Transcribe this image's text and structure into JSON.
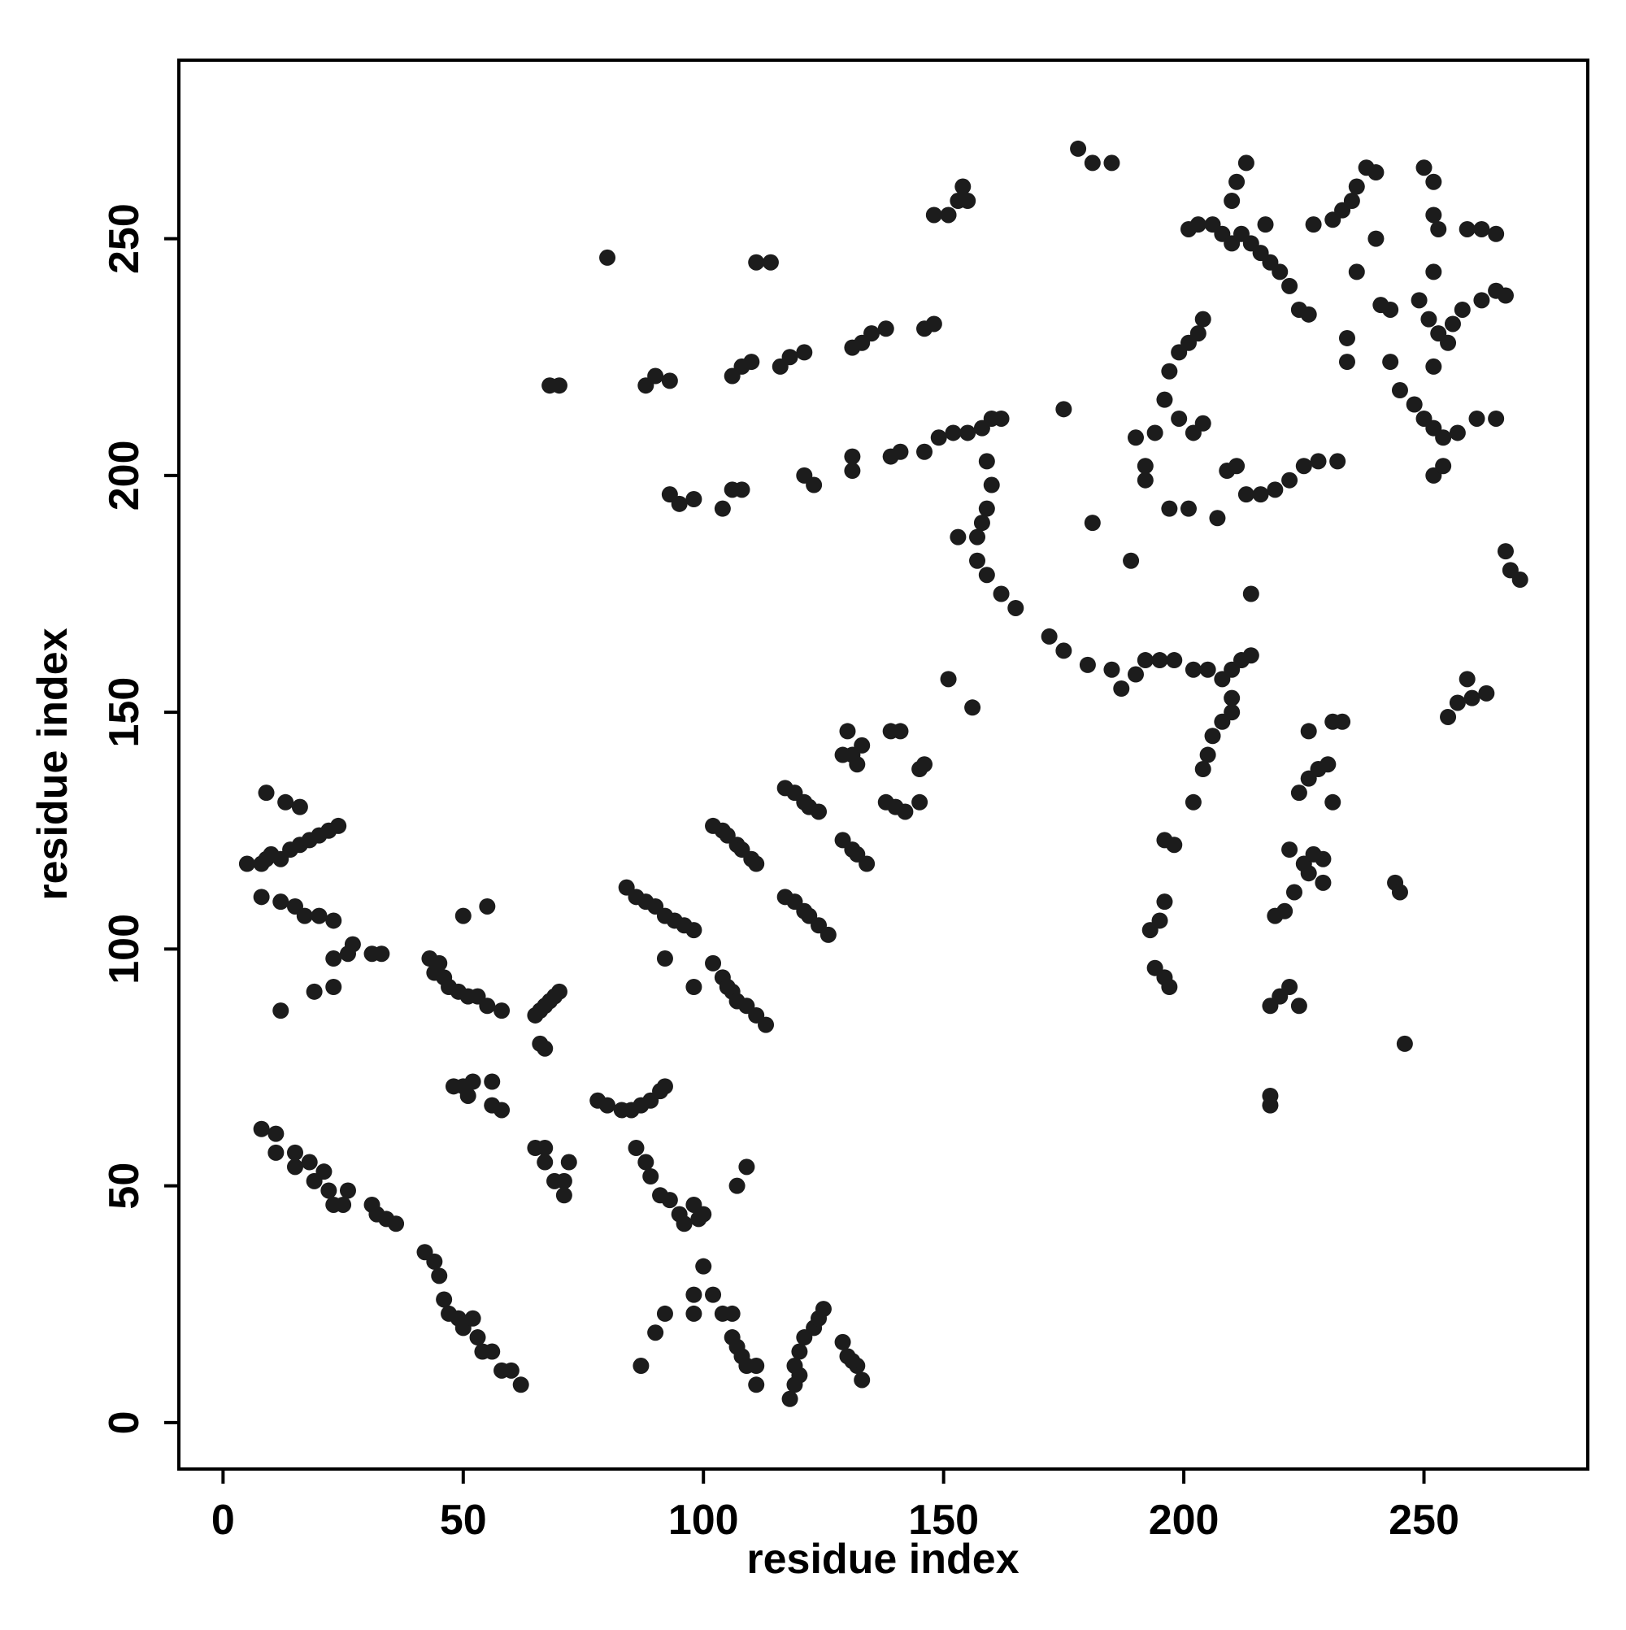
{
  "chart_data": {
    "type": "scatter",
    "xlabel": "residue index",
    "ylabel": "residue index",
    "xlim": [
      -9.2,
      284.1
    ],
    "ylim": [
      -9.8,
      287.7
    ],
    "xticks": [
      0,
      50,
      100,
      150,
      200,
      250
    ],
    "yticks": [
      0,
      50,
      100,
      150,
      200,
      250
    ],
    "series": [
      {
        "color": "#1c1c1c",
        "x": [
          8,
          11,
          11,
          15,
          15,
          18,
          19,
          21,
          22,
          23,
          25,
          26,
          31,
          32,
          34,
          36,
          42,
          44,
          45,
          46,
          47,
          49,
          50,
          52,
          53,
          54,
          56,
          58,
          60,
          62,
          5,
          8,
          10,
          12,
          14,
          16,
          18,
          20,
          22,
          24,
          9,
          13,
          16,
          9,
          8,
          12,
          15,
          17,
          20,
          23,
          23,
          26,
          27,
          31,
          33,
          19,
          23,
          12,
          43,
          45,
          46,
          47,
          49,
          51,
          53,
          55,
          58,
          44,
          50,
          55,
          65,
          66,
          67,
          68,
          69,
          70,
          66,
          67,
          48,
          50,
          51,
          52,
          56,
          56,
          58,
          65,
          67,
          67,
          69,
          71,
          71,
          72,
          84,
          86,
          88,
          90,
          92,
          94,
          96,
          98,
          92,
          98,
          102,
          104,
          105,
          106,
          107,
          109,
          111,
          113,
          102,
          104,
          105,
          107,
          108,
          110,
          111,
          117,
          119,
          121,
          122,
          124,
          126,
          117,
          119,
          121,
          122,
          124,
          129,
          131,
          132,
          134,
          129,
          131,
          132,
          130,
          133,
          138,
          140,
          142,
          145,
          145,
          146,
          139,
          141,
          151,
          156,
          78,
          80,
          83,
          85,
          87,
          89,
          91,
          92,
          86,
          88,
          89,
          91,
          93,
          95,
          96,
          98,
          99,
          100,
          87,
          90,
          92,
          98,
          98,
          100,
          102,
          104,
          106,
          106,
          107,
          108,
          109,
          111,
          111,
          118,
          119,
          119,
          120,
          121,
          123,
          124,
          125,
          120,
          129,
          130,
          132,
          133,
          131,
          107,
          109,
          93,
          95,
          98,
          104,
          106,
          108,
          121,
          123,
          131,
          131,
          139,
          141,
          68,
          70,
          88,
          90,
          93,
          106,
          108,
          110,
          116,
          118,
          121,
          131,
          133,
          135,
          138,
          146,
          148,
          80,
          111,
          114,
          148,
          151,
          153,
          155,
          154,
          178,
          181,
          185,
          146,
          149,
          152,
          155,
          158,
          160,
          162,
          159,
          160,
          159,
          158,
          157,
          153,
          157,
          159,
          162,
          165,
          172,
          175,
          180,
          185,
          187,
          190,
          192,
          195,
          198,
          202,
          205,
          208,
          210,
          212,
          214,
          210,
          210,
          208,
          206,
          205,
          204,
          202,
          196,
          198,
          196,
          195,
          193,
          194,
          196,
          197,
          175,
          181,
          189,
          190,
          192,
          192,
          194,
          196,
          197,
          199,
          201,
          203,
          204,
          199,
          202,
          204,
          201,
          197,
          201,
          203,
          206,
          208,
          210,
          212,
          214,
          216,
          218,
          220,
          222,
          224,
          226,
          227,
          231,
          233,
          235,
          236,
          238,
          240,
          240,
          236,
          234,
          234,
          241,
          243,
          243,
          245,
          248,
          250,
          252,
          254,
          257,
          261,
          265,
          249,
          251,
          253,
          255,
          252,
          252,
          254,
          252,
          250,
          252,
          252,
          253,
          259,
          262,
          265,
          256,
          258,
          262,
          265,
          267,
          209,
          211,
          213,
          216,
          219,
          222,
          225,
          228,
          232,
          207,
          211,
          213,
          210,
          214,
          217,
          219,
          221,
          223,
          225,
          227,
          229,
          229,
          222,
          224,
          226,
          226,
          228,
          230,
          231,
          231,
          233,
          226,
          218,
          220,
          222,
          224,
          218,
          218,
          244,
          245,
          246,
          255,
          257,
          259,
          260,
          263,
          267,
          268,
          270
        ],
        "values": [
          62,
          61,
          57,
          57,
          54,
          55,
          51,
          53,
          49,
          46,
          46,
          49,
          46,
          44,
          43,
          42,
          36,
          34,
          31,
          26,
          23,
          22,
          20,
          22,
          18,
          15,
          15,
          11,
          11,
          8,
          118,
          118,
          120,
          119,
          121,
          122,
          123,
          124,
          125,
          126,
          133,
          131,
          130,
          119,
          111,
          110,
          109,
          107,
          107,
          106,
          98,
          99,
          101,
          99,
          99,
          91,
          92,
          87,
          98,
          97,
          94,
          92,
          91,
          90,
          90,
          88,
          87,
          95,
          107,
          109,
          86,
          87,
          88,
          89,
          90,
          91,
          80,
          79,
          71,
          71,
          69,
          72,
          72,
          67,
          66,
          58,
          58,
          55,
          51,
          51,
          48,
          55,
          113,
          111,
          110,
          109,
          107,
          106,
          105,
          104,
          98,
          92,
          97,
          94,
          92,
          91,
          89,
          88,
          86,
          84,
          126,
          125,
          124,
          122,
          121,
          119,
          118,
          111,
          110,
          108,
          107,
          105,
          103,
          134,
          133,
          131,
          130,
          129,
          123,
          121,
          120,
          118,
          141,
          141,
          139,
          146,
          143,
          131,
          130,
          129,
          131,
          138,
          139,
          146,
          146,
          157,
          151,
          68,
          67,
          66,
          66,
          67,
          68,
          70,
          71,
          58,
          55,
          52,
          48,
          47,
          44,
          42,
          46,
          43,
          44,
          12,
          19,
          23,
          27,
          23,
          33,
          27,
          23,
          23,
          18,
          16,
          14,
          12,
          8,
          12,
          5,
          8,
          12,
          15,
          18,
          20,
          22,
          24,
          10,
          17,
          14,
          12,
          9,
          13,
          50,
          54,
          196,
          194,
          195,
          193,
          197,
          197,
          200,
          198,
          201,
          204,
          204,
          205,
          219,
          219,
          219,
          221,
          220,
          221,
          223,
          224,
          223,
          225,
          226,
          227,
          228,
          230,
          231,
          231,
          232,
          246,
          245,
          245,
          255,
          255,
          258,
          258,
          261,
          269,
          266,
          266,
          205,
          208,
          209,
          209,
          210,
          212,
          212,
          203,
          198,
          193,
          190,
          187,
          187,
          182,
          179,
          175,
          172,
          166,
          163,
          160,
          159,
          155,
          158,
          161,
          161,
          161,
          159,
          159,
          157,
          159,
          161,
          162,
          153,
          150,
          148,
          145,
          141,
          138,
          131,
          123,
          122,
          110,
          106,
          104,
          96,
          94,
          92,
          214,
          190,
          182,
          208,
          202,
          199,
          209,
          216,
          222,
          226,
          228,
          230,
          233,
          212,
          209,
          211,
          193,
          193,
          252,
          253,
          253,
          251,
          249,
          251,
          249,
          247,
          245,
          243,
          240,
          235,
          234,
          253,
          254,
          256,
          258,
          261,
          265,
          264,
          250,
          243,
          229,
          224,
          236,
          235,
          224,
          218,
          215,
          212,
          210,
          208,
          209,
          212,
          212,
          237,
          233,
          230,
          228,
          223,
          200,
          202,
          243,
          265,
          262,
          255,
          252,
          252,
          252,
          251,
          232,
          235,
          237,
          239,
          238,
          201,
          202,
          196,
          196,
          197,
          199,
          202,
          203,
          203,
          191,
          262,
          266,
          258,
          175,
          253,
          107,
          108,
          112,
          118,
          120,
          119,
          114,
          121,
          133,
          136,
          146,
          138,
          139,
          131,
          148,
          148,
          116,
          88,
          90,
          92,
          88,
          69,
          67,
          114,
          112,
          80,
          149,
          152,
          157,
          153,
          154,
          184,
          180,
          178
        ]
      }
    ]
  }
}
